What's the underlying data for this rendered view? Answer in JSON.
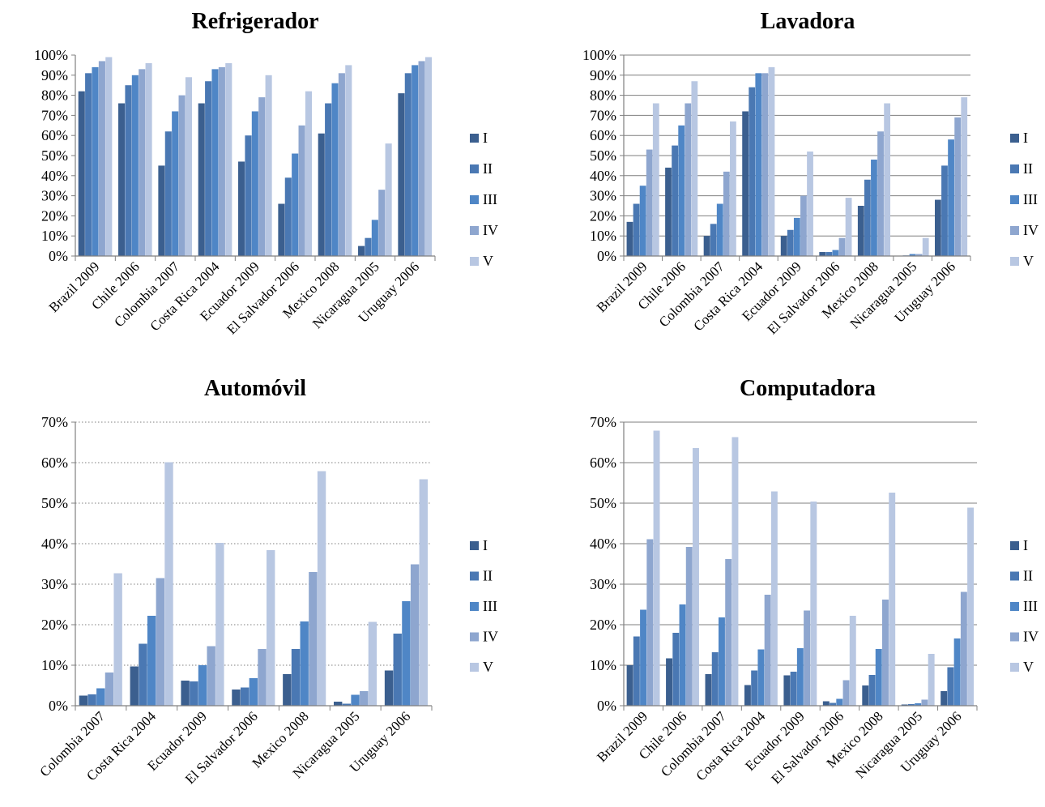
{
  "colors": {
    "I": "#3b5f8f",
    "II": "#4a78b3",
    "III": "#4f86c6",
    "IV": "#8ea6cf",
    "V": "#b8c7e2",
    "axis": "#808080",
    "grid_solid": "#7f7f7f",
    "grid_dotted": "#7f7f7f"
  },
  "chart_data": [
    {
      "type": "bar",
      "title": "Refrigerador",
      "ylim": [
        0,
        100
      ],
      "yticks": [
        0,
        10,
        20,
        30,
        40,
        50,
        60,
        70,
        80,
        90,
        100
      ],
      "ytick_labels": [
        "0%",
        "10%",
        "20%",
        "30%",
        "40%",
        "50%",
        "60%",
        "70%",
        "80%",
        "90%",
        "100%"
      ],
      "grid": "none",
      "legend_position": "right",
      "categories": [
        "Brazil 2009",
        "Chile 2006",
        "Colombia 2007",
        "Costa Rica 2004",
        "Ecuador 2009",
        "El Salvador 2006",
        "Mexico 2008",
        "Nicaragua 2005",
        "Uruguay 2006"
      ],
      "series": [
        {
          "name": "I",
          "values": [
            82,
            76,
            45,
            76,
            47,
            26,
            61,
            5,
            81
          ]
        },
        {
          "name": "II",
          "values": [
            91,
            85,
            62,
            87,
            60,
            39,
            76,
            9,
            91
          ]
        },
        {
          "name": "III",
          "values": [
            94,
            90,
            72,
            93,
            72,
            51,
            86,
            18,
            95
          ]
        },
        {
          "name": "IV",
          "values": [
            97,
            93,
            80,
            94,
            79,
            65,
            91,
            33,
            97
          ]
        },
        {
          "name": "V",
          "values": [
            99,
            96,
            89,
            96,
            90,
            82,
            95,
            56,
            99
          ]
        }
      ]
    },
    {
      "type": "bar",
      "title": "Lavadora",
      "ylim": [
        0,
        100
      ],
      "yticks": [
        0,
        10,
        20,
        30,
        40,
        50,
        60,
        70,
        80,
        90,
        100
      ],
      "ytick_labels": [
        "0%",
        "10%",
        "20%",
        "30%",
        "40%",
        "50%",
        "60%",
        "70%",
        "80%",
        "90%",
        "100%"
      ],
      "grid": "solid",
      "legend_position": "right",
      "categories": [
        "Brazil 2009",
        "Chile 2006",
        "Colombia 2007",
        "Costa Rica 2004",
        "Ecuador 2009",
        "El Salvador 2006",
        "Mexico 2008",
        "Nicaragua 2005",
        "Uruguay 2006"
      ],
      "series": [
        {
          "name": "I",
          "values": [
            17,
            44,
            10,
            72,
            10,
            2,
            25,
            0.1,
            28
          ]
        },
        {
          "name": "II",
          "values": [
            26,
            55,
            16,
            84,
            13,
            2,
            38,
            0.3,
            45
          ]
        },
        {
          "name": "III",
          "values": [
            35,
            65,
            26,
            91,
            19,
            3,
            48,
            1,
            58
          ]
        },
        {
          "name": "IV",
          "values": [
            53,
            76,
            42,
            91,
            30,
            9,
            62,
            1,
            69
          ]
        },
        {
          "name": "V",
          "values": [
            76,
            87,
            67,
            94,
            52,
            29,
            76,
            9,
            79
          ]
        }
      ]
    },
    {
      "type": "bar",
      "title": "Automóvil",
      "ylim": [
        0,
        70
      ],
      "yticks": [
        0,
        10,
        20,
        30,
        40,
        50,
        60,
        70
      ],
      "ytick_labels": [
        "0%",
        "10%",
        "20%",
        "30%",
        "40%",
        "50%",
        "60%",
        "70%"
      ],
      "grid": "dotted",
      "legend_position": "right",
      "categories": [
        "Colombia 2007",
        "Costa Rica 2004",
        "Ecuador 2009",
        "El Salvador 2006",
        "Mexico 2008",
        "Nicaragua 2005",
        "Uruguay 2006"
      ],
      "series": [
        {
          "name": "I",
          "values": [
            2.5,
            9.7,
            6.2,
            4.0,
            7.8,
            1.0,
            8.7
          ]
        },
        {
          "name": "II",
          "values": [
            2.8,
            15.3,
            6.0,
            4.5,
            14.0,
            0.5,
            17.8
          ]
        },
        {
          "name": "III",
          "values": [
            4.3,
            22.2,
            10.0,
            6.8,
            20.8,
            2.7,
            25.8
          ]
        },
        {
          "name": "IV",
          "values": [
            8.2,
            31.5,
            14.7,
            14.0,
            33.0,
            3.6,
            34.9
          ]
        },
        {
          "name": "V",
          "values": [
            32.7,
            60.1,
            40.2,
            38.4,
            57.9,
            20.7,
            55.9
          ]
        }
      ]
    },
    {
      "type": "bar",
      "title": "Computadora",
      "ylim": [
        0,
        70
      ],
      "yticks": [
        0,
        10,
        20,
        30,
        40,
        50,
        60,
        70
      ],
      "ytick_labels": [
        "0%",
        "10%",
        "20%",
        "30%",
        "40%",
        "50%",
        "60%",
        "70%"
      ],
      "grid": "solid",
      "legend_position": "right",
      "categories": [
        "Brazil 2009",
        "Chile 2006",
        "Colombia 2007",
        "Costa Rica 2004",
        "Ecuador 2009",
        "El Salvador 2006",
        "Mexico 2008",
        "Nicaragua 2005",
        "Uruguay 2006"
      ],
      "series": [
        {
          "name": "I",
          "values": [
            10.0,
            11.7,
            7.8,
            5.1,
            7.5,
            1.1,
            5.0,
            0.3,
            3.6
          ]
        },
        {
          "name": "II",
          "values": [
            17.1,
            18.0,
            13.2,
            8.7,
            8.4,
            0.7,
            7.6,
            0.4,
            9.5
          ]
        },
        {
          "name": "III",
          "values": [
            23.7,
            25.0,
            21.8,
            13.9,
            14.2,
            1.7,
            14.0,
            0.6,
            16.6
          ]
        },
        {
          "name": "IV",
          "values": [
            41.1,
            39.2,
            36.2,
            27.4,
            23.5,
            6.3,
            26.2,
            1.5,
            28.1
          ]
        },
        {
          "name": "V",
          "values": [
            67.9,
            63.6,
            66.3,
            52.9,
            50.4,
            22.2,
            52.6,
            12.8,
            48.9
          ]
        }
      ]
    }
  ]
}
